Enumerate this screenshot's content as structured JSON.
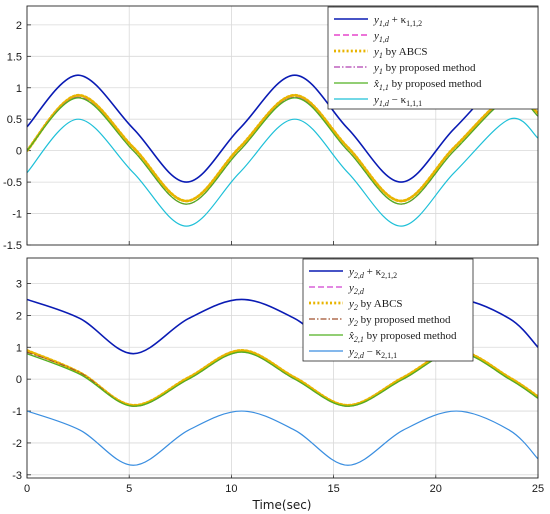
{
  "chart_data": [
    {
      "type": "line",
      "xlabel": "",
      "ylabel": "",
      "xlim": [
        0,
        25
      ],
      "ylim": [
        -1.5,
        2.3
      ],
      "xticks": [
        "0",
        "5",
        "10",
        "15",
        "20",
        "25"
      ],
      "yticks": [
        "-1.5",
        "-1",
        "-0.5",
        "0",
        "0.5",
        "1",
        "1.5",
        "2"
      ],
      "x": [
        0,
        2.5,
        5.2,
        7.8,
        10.4,
        13.1,
        15.7,
        18.3,
        20.9,
        23.6,
        25
      ],
      "grid": true,
      "legend_position": "top-right",
      "series": [
        {
          "name": "y1,d + κ1,1,2",
          "color": "#0a1bb4",
          "style": "solid",
          "width": 1.6,
          "values": [
            0.38,
            1.2,
            0.35,
            -0.5,
            0.35,
            1.2,
            0.35,
            -0.5,
            0.35,
            1.2,
            0.9
          ]
        },
        {
          "name": "y1,d",
          "color": "#e020c0",
          "style": "dashed",
          "width": 1.2,
          "values": [
            0,
            0.85,
            0,
            -0.85,
            0,
            0.85,
            0,
            -0.85,
            0,
            0.85,
            0.55
          ]
        },
        {
          "name": "y1 by ABCS",
          "color": "#e8b400",
          "style": "dotted",
          "width": 2.8,
          "values": [
            0,
            0.88,
            0.05,
            -0.8,
            0.05,
            0.88,
            0.05,
            -0.8,
            0.05,
            0.88,
            0.6
          ]
        },
        {
          "name": "y1 by proposed method",
          "color": "#b040b0",
          "style": "dashdot",
          "width": 1.0,
          "values": [
            0,
            0.85,
            0,
            -0.85,
            0,
            0.85,
            0,
            -0.85,
            0,
            0.85,
            0.55
          ]
        },
        {
          "name": "x̂1,1 by proposed method",
          "color": "#52b020",
          "style": "solid",
          "width": 1.3,
          "values": [
            0,
            0.84,
            0,
            -0.85,
            0,
            0.84,
            0,
            -0.85,
            0,
            0.84,
            0.55
          ]
        },
        {
          "name": "y1,d − κ1,1,1",
          "color": "#1ec0d8",
          "style": "solid",
          "width": 1.2,
          "values": [
            -0.35,
            0.5,
            -0.35,
            -1.2,
            -0.35,
            0.5,
            -0.35,
            -1.2,
            -0.35,
            0.5,
            0.2
          ]
        }
      ]
    },
    {
      "type": "line",
      "xlabel": "Time(sec)",
      "ylabel": "",
      "xlim": [
        0,
        25
      ],
      "ylim": [
        -3.1,
        3.8
      ],
      "xticks": [
        "0",
        "5",
        "10",
        "15",
        "20",
        "25"
      ],
      "yticks": [
        "-3",
        "-2",
        "-1",
        "0",
        "1",
        "2",
        "3"
      ],
      "x": [
        0,
        2.6,
        5.2,
        7.9,
        10.5,
        13.1,
        15.7,
        18.4,
        21.0,
        23.6,
        25
      ],
      "grid": true,
      "legend_position": "top-right",
      "series": [
        {
          "name": "y2,d + κ2,1,2",
          "color": "#0a1bb4",
          "style": "solid",
          "width": 1.6,
          "values": [
            2.5,
            1.9,
            0.8,
            1.9,
            2.5,
            1.9,
            0.8,
            1.9,
            2.5,
            1.9,
            1.0
          ]
        },
        {
          "name": "y2,d",
          "color": "#d040d0",
          "style": "dashed",
          "width": 1.2,
          "values": [
            0.85,
            0.2,
            -0.85,
            0,
            0.85,
            0,
            -0.85,
            0,
            0.85,
            0,
            -0.6
          ]
        },
        {
          "name": "y2 by ABCS",
          "color": "#e8b400",
          "style": "dotted",
          "width": 2.8,
          "values": [
            0.9,
            0.2,
            -0.82,
            0.05,
            0.9,
            0.05,
            -0.82,
            0.05,
            0.9,
            0.05,
            -0.55
          ]
        },
        {
          "name": "y2 by proposed method",
          "color": "#a0522d",
          "style": "dashdot",
          "width": 1.0,
          "values": [
            0.85,
            0.2,
            -0.85,
            0,
            0.85,
            0,
            -0.85,
            0,
            0.85,
            0,
            -0.6
          ]
        },
        {
          "name": "x̂2,1 by proposed method",
          "color": "#52b020",
          "style": "solid",
          "width": 1.3,
          "values": [
            0.8,
            0.15,
            -0.85,
            0,
            0.85,
            0,
            -0.85,
            0,
            0.85,
            0,
            -0.6
          ]
        },
        {
          "name": "y2,d − κ2,1,1",
          "color": "#3a8ee0",
          "style": "solid",
          "width": 1.2,
          "values": [
            -1.0,
            -1.6,
            -2.7,
            -1.6,
            -1.0,
            -1.6,
            -2.7,
            -1.6,
            -1.0,
            -1.6,
            -2.5
          ]
        }
      ]
    }
  ],
  "legend_text": {
    "top": [
      {
        "base": "y",
        "sub": "1,d",
        "rest": " + κ",
        "rsub": "1,1,2"
      },
      {
        "base": "y",
        "sub": "1,d",
        "rest": "",
        "rsub": ""
      },
      {
        "base": "y",
        "sub": "1",
        "rest": " by ABCS",
        "rsub": ""
      },
      {
        "base": "y",
        "sub": "1",
        "rest": " by proposed method",
        "rsub": ""
      },
      {
        "base": "x̂",
        "sub": "1,1",
        "rest": " by proposed method",
        "rsub": ""
      },
      {
        "base": "y",
        "sub": "1,d",
        "rest": " − κ",
        "rsub": "1,1,1"
      }
    ],
    "bottom": [
      {
        "base": "y",
        "sub": "2,d",
        "rest": " + κ",
        "rsub": "2,1,2"
      },
      {
        "base": "y",
        "sub": "2,d",
        "rest": "",
        "rsub": ""
      },
      {
        "base": "y",
        "sub": "2",
        "rest": " by ABCS",
        "rsub": ""
      },
      {
        "base": "y",
        "sub": "2",
        "rest": " by proposed method",
        "rsub": ""
      },
      {
        "base": "x̂",
        "sub": "2,1",
        "rest": " by proposed method",
        "rsub": ""
      },
      {
        "base": "y",
        "sub": "2,d",
        "rest": " − κ",
        "rsub": "2,1,1"
      }
    ]
  }
}
